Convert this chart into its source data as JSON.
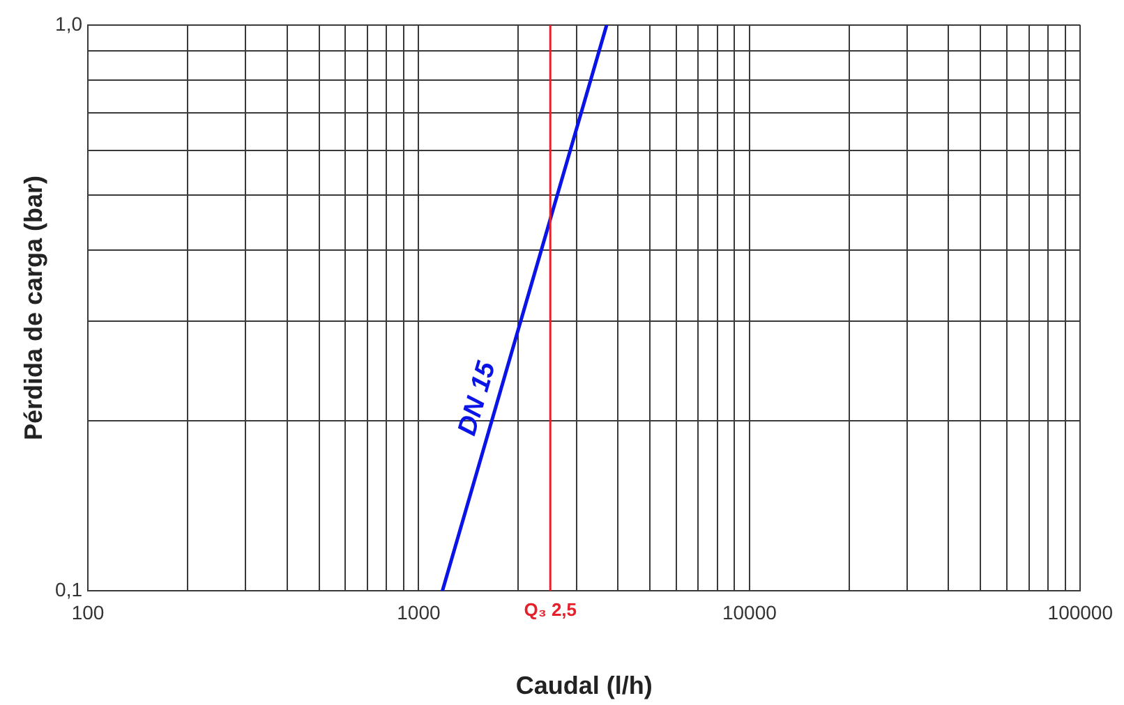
{
  "chart_data": {
    "type": "line",
    "xlabel": "Caudal (l/h)",
    "ylabel": "Pérdida de carga (bar)",
    "log": "xy",
    "grid": true,
    "legend": false,
    "marker": "none",
    "line_style": "solid",
    "xlim": [
      100,
      100000
    ],
    "ylim": [
      0.1,
      1.0
    ],
    "xticks": [
      100,
      {
        "value": 200,
        "label": null
      },
      {
        "value": 300,
        "label": null
      },
      {
        "value": 400,
        "label": null
      },
      {
        "value": 500,
        "label": null
      },
      {
        "value": 600,
        "label": null
      },
      {
        "value": 700,
        "label": null
      },
      {
        "value": 800,
        "label": null
      },
      {
        "value": 900,
        "label": null
      },
      1000,
      {
        "value": 2000,
        "label": null
      },
      {
        "value": 3000,
        "label": null
      },
      {
        "value": 4000,
        "label": null
      },
      {
        "value": 5000,
        "label": null
      },
      {
        "value": 6000,
        "label": null
      },
      {
        "value": 7000,
        "label": null
      },
      {
        "value": 8000,
        "label": null
      },
      {
        "value": 9000,
        "label": null
      },
      10000,
      {
        "value": 20000,
        "label": null
      },
      {
        "value": 30000,
        "label": null
      },
      {
        "value": 40000,
        "label": null
      },
      {
        "value": 50000,
        "label": null
      },
      {
        "value": 60000,
        "label": null
      },
      {
        "value": 70000,
        "label": null
      },
      {
        "value": 80000,
        "label": null
      },
      {
        "value": 90000,
        "label": null
      },
      100000
    ],
    "yticks": [
      {
        "value": 0.1,
        "label": "0,1"
      },
      {
        "value": 0.2,
        "label": null
      },
      {
        "value": 0.3,
        "label": null
      },
      {
        "value": 0.4,
        "label": null
      },
      {
        "value": 0.5,
        "label": null
      },
      {
        "value": 0.6,
        "label": null
      },
      {
        "value": 0.7,
        "label": null
      },
      {
        "value": 0.8,
        "label": null
      },
      {
        "value": 0.9,
        "label": null
      },
      {
        "value": 1.0,
        "label": "1,0"
      }
    ],
    "series": [
      {
        "name": "DN 15",
        "color": "#0a14e6",
        "x": [
          1180,
          3700
        ],
        "values": [
          0.1,
          1.0
        ]
      }
    ],
    "ref_lines": [
      {
        "axis": "x",
        "value": 2500,
        "label": "Q₃ 2,5",
        "color": "#e5202a"
      }
    ]
  }
}
